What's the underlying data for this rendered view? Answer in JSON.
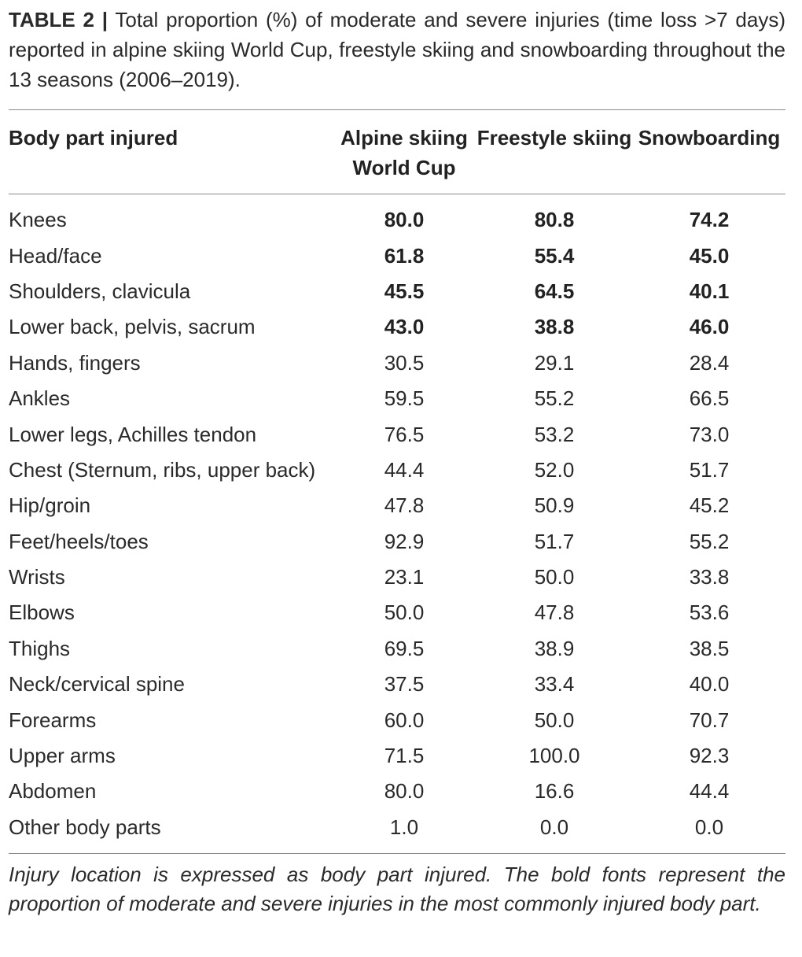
{
  "caption": {
    "label": "TABLE 2 |",
    "text": "Total proportion (%) of moderate and severe injuries (time loss >7 days) reported in alpine skiing World Cup, freestyle skiing and snowboarding throughout the 13 seasons (2006–2019)."
  },
  "table": {
    "headers": [
      "Body part injured",
      "Alpine skiing World Cup",
      "Freestyle skiing",
      "Snowboarding"
    ],
    "rows": [
      {
        "label": "Knees",
        "values": [
          "80.0",
          "80.8",
          "74.2"
        ],
        "bold": true
      },
      {
        "label": "Head/face",
        "values": [
          "61.8",
          "55.4",
          "45.0"
        ],
        "bold": true
      },
      {
        "label": "Shoulders, clavicula",
        "values": [
          "45.5",
          "64.5",
          "40.1"
        ],
        "bold": true
      },
      {
        "label": "Lower back, pelvis, sacrum",
        "values": [
          "43.0",
          "38.8",
          "46.0"
        ],
        "bold": true
      },
      {
        "label": "Hands, fingers",
        "values": [
          "30.5",
          "29.1",
          "28.4"
        ],
        "bold": false
      },
      {
        "label": "Ankles",
        "values": [
          "59.5",
          "55.2",
          "66.5"
        ],
        "bold": false
      },
      {
        "label": "Lower legs, Achilles tendon",
        "values": [
          "76.5",
          "53.2",
          "73.0"
        ],
        "bold": false
      },
      {
        "label": "Chest (Sternum, ribs, upper back)",
        "values": [
          "44.4",
          "52.0",
          "51.7"
        ],
        "bold": false
      },
      {
        "label": "Hip/groin",
        "values": [
          "47.8",
          "50.9",
          "45.2"
        ],
        "bold": false
      },
      {
        "label": "Feet/heels/toes",
        "values": [
          "92.9",
          "51.7",
          "55.2"
        ],
        "bold": false
      },
      {
        "label": "Wrists",
        "values": [
          "23.1",
          "50.0",
          "33.8"
        ],
        "bold": false
      },
      {
        "label": "Elbows",
        "values": [
          "50.0",
          "47.8",
          "53.6"
        ],
        "bold": false
      },
      {
        "label": "Thighs",
        "values": [
          "69.5",
          "38.9",
          "38.5"
        ],
        "bold": false
      },
      {
        "label": "Neck/cervical spine",
        "values": [
          "37.5",
          "33.4",
          "40.0"
        ],
        "bold": false
      },
      {
        "label": "Forearms",
        "values": [
          "60.0",
          "50.0",
          "70.7"
        ],
        "bold": false
      },
      {
        "label": "Upper arms",
        "values": [
          "71.5",
          "100.0",
          "92.3"
        ],
        "bold": false
      },
      {
        "label": "Abdomen",
        "values": [
          "80.0",
          "16.6",
          "44.4"
        ],
        "bold": false
      },
      {
        "label": "Other body parts",
        "values": [
          "1.0",
          "0.0",
          "0.0"
        ],
        "bold": false
      }
    ]
  },
  "footnote": "Injury location is expressed as body part injured. The bold fonts represent the proportion of moderate and severe injuries in the most commonly injured body part."
}
